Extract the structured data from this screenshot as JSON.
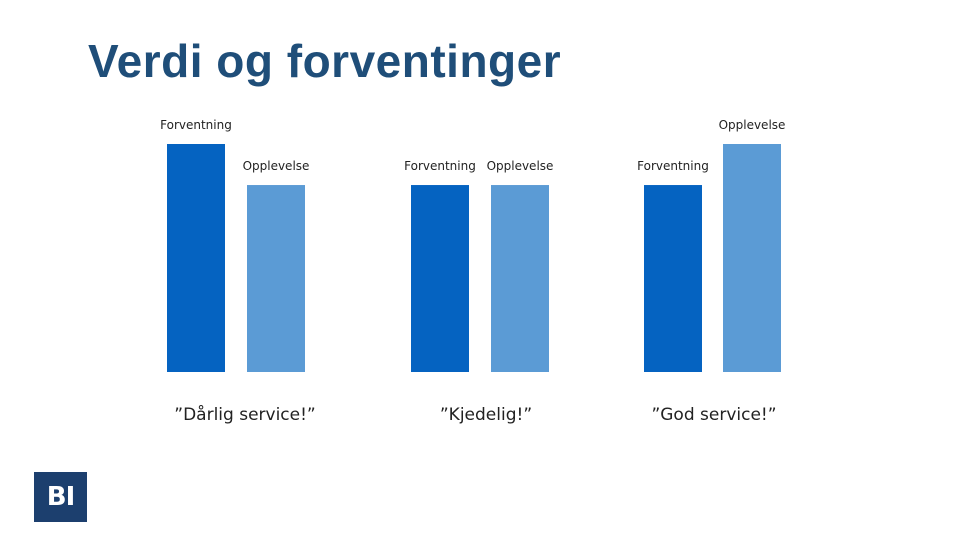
{
  "page": {
    "title": "Verdi og forventinger"
  },
  "logo": {
    "text": "BI"
  },
  "colors": {
    "forventning": "#0563c1",
    "opplevelse": "#5b9bd5",
    "title": "#1f4e79",
    "logo_bg": "#1c3f6e"
  },
  "chart_data": [
    {
      "type": "bar",
      "categories": [
        "Forventning",
        "Opplevelse"
      ],
      "values": [
        100,
        82
      ],
      "verdict": "”Dårlig service!”"
    },
    {
      "type": "bar",
      "categories": [
        "Forventning",
        "Opplevelse"
      ],
      "values": [
        82,
        82
      ],
      "verdict": "”Kjedelig!”"
    },
    {
      "type": "bar",
      "categories": [
        "Forventning",
        "Opplevelse"
      ],
      "values": [
        82,
        100
      ],
      "verdict": "”God service!”"
    }
  ]
}
